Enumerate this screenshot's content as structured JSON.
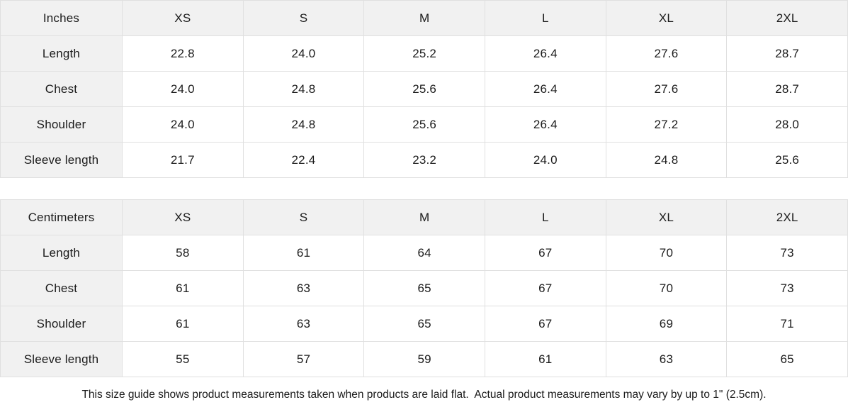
{
  "tables": [
    {
      "unit_label": "Inches",
      "sizes": [
        "XS",
        "S",
        "M",
        "L",
        "XL",
        "2XL"
      ],
      "rows": [
        {
          "label": "Length",
          "values": [
            "22.8",
            "24.0",
            "25.2",
            "26.4",
            "27.6",
            "28.7"
          ]
        },
        {
          "label": "Chest",
          "values": [
            "24.0",
            "24.8",
            "25.6",
            "26.4",
            "27.6",
            "28.7"
          ]
        },
        {
          "label": "Shoulder",
          "values": [
            "24.0",
            "24.8",
            "25.6",
            "26.4",
            "27.2",
            "28.0"
          ]
        },
        {
          "label": "Sleeve length",
          "values": [
            "21.7",
            "22.4",
            "23.2",
            "24.0",
            "24.8",
            "25.6"
          ]
        }
      ]
    },
    {
      "unit_label": "Centimeters",
      "sizes": [
        "XS",
        "S",
        "M",
        "L",
        "XL",
        "2XL"
      ],
      "rows": [
        {
          "label": "Length",
          "values": [
            "58",
            "61",
            "64",
            "67",
            "70",
            "73"
          ]
        },
        {
          "label": "Chest",
          "values": [
            "61",
            "63",
            "65",
            "67",
            "70",
            "73"
          ]
        },
        {
          "label": "Shoulder",
          "values": [
            "61",
            "63",
            "65",
            "67",
            "69",
            "71"
          ]
        },
        {
          "label": "Sleeve length",
          "values": [
            "55",
            "57",
            "59",
            "61",
            "63",
            "65"
          ]
        }
      ]
    }
  ],
  "footer_note": "This size guide shows product measurements taken when products are laid flat.  Actual product measurements may vary by up to 1\" (2.5cm).",
  "colors": {
    "header_bg": "#f1f1f1",
    "border": "#e0e0e0",
    "text": "#1b1b1b"
  }
}
